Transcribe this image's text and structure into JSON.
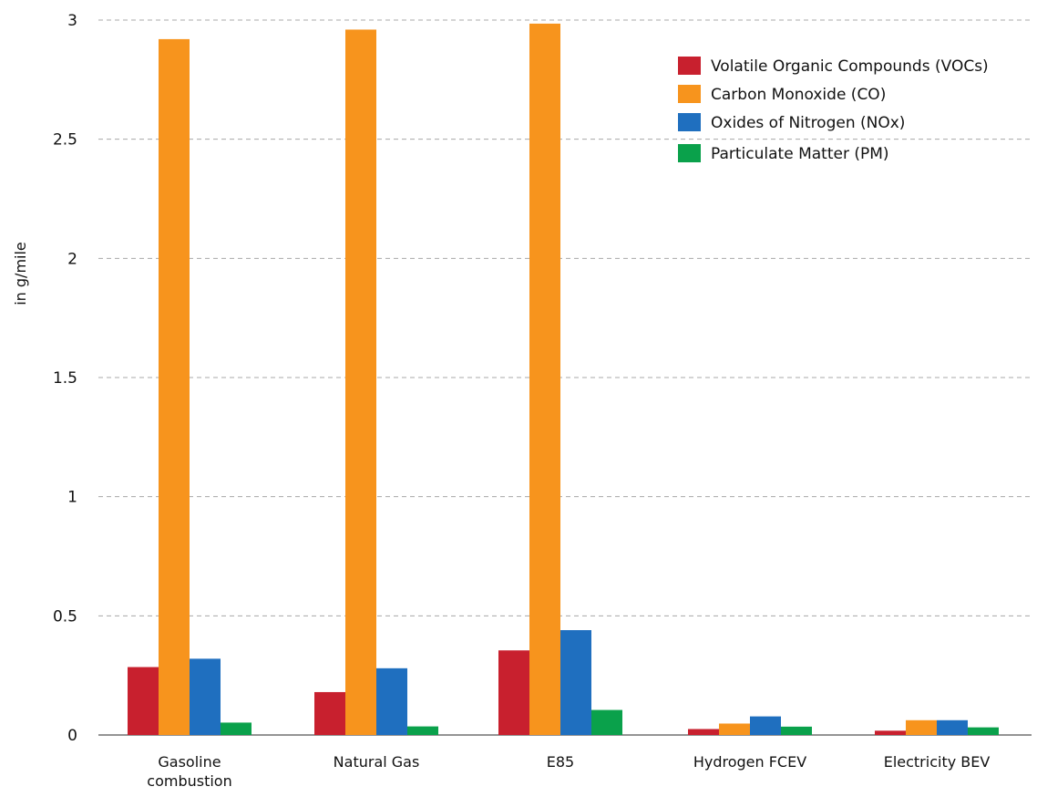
{
  "chart_data": {
    "type": "bar",
    "title": "",
    "xlabel": "",
    "ylabel": "in g/mile",
    "ylim": [
      0,
      3
    ],
    "yticks": [
      "0",
      "0.5",
      "1",
      "1.5",
      "2",
      "2.5",
      "3"
    ],
    "grid": true,
    "legend_position": "top-right",
    "categories": [
      [
        "Gasoline",
        "combustion"
      ],
      [
        "Natural Gas"
      ],
      [
        "E85"
      ],
      [
        "Hydrogen FCEV"
      ],
      [
        "Electricity BEV"
      ]
    ],
    "series": [
      {
        "name": "Volatile Organic Compounds (VOCs)",
        "color": "#c8202e",
        "values": [
          0.285,
          0.18,
          0.355,
          0.025,
          0.018
        ]
      },
      {
        "name": "Carbon  Monoxide (CO)",
        "color": "#f7941d",
        "values": [
          2.92,
          2.96,
          2.985,
          0.048,
          0.062
        ]
      },
      {
        "name": "Oxides of Nitrogen (NOx)",
        "color": "#1f6fbf",
        "values": [
          0.32,
          0.28,
          0.44,
          0.078,
          0.062
        ]
      },
      {
        "name": "Particulate Matter (PM)",
        "color": "#0aa14b",
        "values": [
          0.052,
          0.036,
          0.105,
          0.035,
          0.032
        ]
      }
    ]
  }
}
